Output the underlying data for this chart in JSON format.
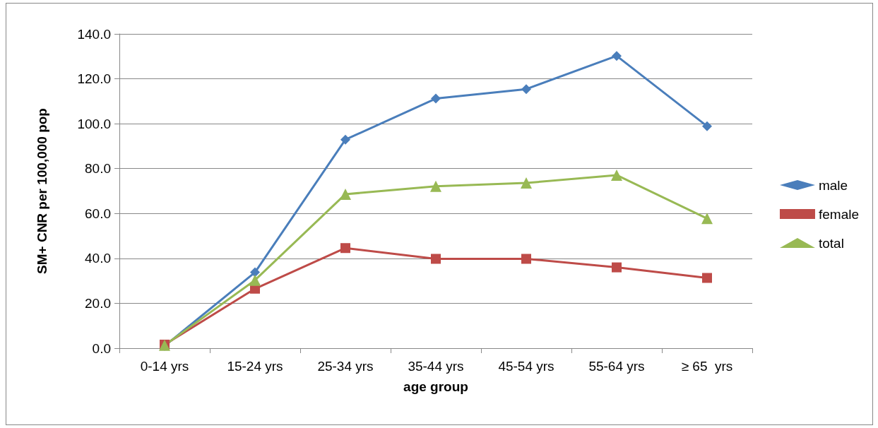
{
  "chart_data": {
    "type": "line",
    "xlabel": "age group",
    "ylabel": "SM+ CNR per 100,000 pop",
    "categories": [
      "0-14 yrs",
      "15-24 yrs",
      "25-34 yrs",
      "35-44 yrs",
      "45-54 yrs",
      "55-64 yrs",
      "≥ 65  yrs"
    ],
    "series": [
      {
        "name": "male",
        "color": "#4a7ebb",
        "marker": "diamond",
        "values": [
          1.0,
          33.8,
          92.9,
          111.2,
          115.4,
          130.2,
          98.9
        ]
      },
      {
        "name": "female",
        "color": "#be4b48",
        "marker": "square",
        "values": [
          1.6,
          26.5,
          44.6,
          39.8,
          39.8,
          36.0,
          31.3
        ]
      },
      {
        "name": "total",
        "color": "#98b954",
        "marker": "triangle",
        "values": [
          1.3,
          30.3,
          68.6,
          72.1,
          73.6,
          77.1,
          57.8
        ]
      }
    ],
    "ylim": [
      0,
      140
    ],
    "yticks": [
      {
        "value": 0,
        "label": "0.0"
      },
      {
        "value": 20,
        "label": "20.0"
      },
      {
        "value": 40,
        "label": "40.0"
      },
      {
        "value": 60,
        "label": "60.0"
      },
      {
        "value": 80,
        "label": "80.0"
      },
      {
        "value": 100,
        "label": "100.0"
      },
      {
        "value": 120,
        "label": "120.0"
      },
      {
        "value": 140,
        "label": "140.0"
      }
    ],
    "grid": "y",
    "legend": "right",
    "line_style": "solid"
  }
}
